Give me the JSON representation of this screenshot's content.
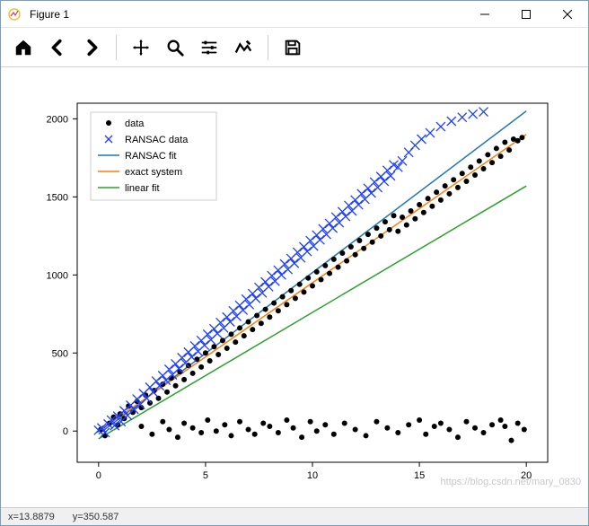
{
  "window": {
    "title": "Figure 1"
  },
  "status": {
    "x_label": "x=",
    "x_value": "13.8879",
    "y_label": "y=",
    "y_value": "350.587"
  },
  "watermark": "https://blog.csdn.net/mary_0830",
  "chart": {
    "type": "scatter-line",
    "xlim": [
      -1,
      21
    ],
    "ylim": [
      -200,
      2100
    ],
    "xtick_step": 5,
    "xticks": [
      0,
      5,
      10,
      15,
      20
    ],
    "ytick_step": 500,
    "yticks": [
      0,
      500,
      1000,
      1500,
      2000
    ],
    "background_color": "#ffffff",
    "axis_color": "#000000",
    "tick_fontsize": 11,
    "legend": {
      "position": "upper-left",
      "fontsize": 11,
      "border_color": "#cccccc",
      "bg_color": "#ffffff",
      "items": [
        {
          "label": "data",
          "type": "marker",
          "marker": "dot",
          "color": "#000000"
        },
        {
          "label": "RANSAC data",
          "type": "marker",
          "marker": "x",
          "color": "#1f3fff"
        },
        {
          "label": "RANSAC fit",
          "type": "line",
          "color": "#1f77b4"
        },
        {
          "label": "exact system",
          "type": "line",
          "color": "#ff7f0e"
        },
        {
          "label": "linear fit",
          "type": "line",
          "color": "#2ca02c"
        }
      ]
    },
    "lines": {
      "ransac_fit": {
        "color": "#1f77b4",
        "width": 1.5,
        "x0": 0,
        "y0": -20,
        "x1": 20,
        "y1": 2050
      },
      "exact_system": {
        "color": "#ff7f0e",
        "width": 1.5,
        "x0": 0,
        "y0": 0,
        "x1": 20,
        "y1": 1900
      },
      "linear_fit": {
        "color": "#2ca02c",
        "width": 1.5,
        "x0": 0,
        "y0": -50,
        "x1": 20,
        "y1": 1570
      }
    },
    "series": {
      "data": {
        "color": "#000000",
        "marker": "dot",
        "size": 3,
        "points": [
          [
            0.1,
            10
          ],
          [
            0.3,
            -30
          ],
          [
            0.5,
            50
          ],
          [
            0.7,
            90
          ],
          [
            0.9,
            40
          ],
          [
            1.0,
            110
          ],
          [
            1.2,
            80
          ],
          [
            1.4,
            160
          ],
          [
            1.6,
            120
          ],
          [
            1.8,
            190
          ],
          [
            2.0,
            150
          ],
          [
            2.2,
            230
          ],
          [
            2.4,
            180
          ],
          [
            2.6,
            260
          ],
          [
            2.8,
            210
          ],
          [
            3.0,
            300
          ],
          [
            3.2,
            250
          ],
          [
            3.4,
            340
          ],
          [
            3.6,
            290
          ],
          [
            3.8,
            380
          ],
          [
            4.0,
            330
          ],
          [
            4.2,
            420
          ],
          [
            4.4,
            370
          ],
          [
            4.6,
            460
          ],
          [
            4.8,
            410
          ],
          [
            5.0,
            500
          ],
          [
            5.2,
            450
          ],
          [
            5.4,
            540
          ],
          [
            5.6,
            490
          ],
          [
            5.8,
            580
          ],
          [
            6.0,
            530
          ],
          [
            6.2,
            620
          ],
          [
            6.4,
            570
          ],
          [
            6.6,
            660
          ],
          [
            6.8,
            610
          ],
          [
            7.0,
            700
          ],
          [
            7.2,
            650
          ],
          [
            7.4,
            740
          ],
          [
            7.6,
            690
          ],
          [
            7.8,
            780
          ],
          [
            8.0,
            730
          ],
          [
            8.2,
            820
          ],
          [
            8.4,
            770
          ],
          [
            8.6,
            860
          ],
          [
            8.8,
            810
          ],
          [
            9.0,
            900
          ],
          [
            9.2,
            850
          ],
          [
            9.4,
            940
          ],
          [
            9.6,
            890
          ],
          [
            9.8,
            980
          ],
          [
            10.0,
            930
          ],
          [
            10.2,
            1020
          ],
          [
            10.4,
            970
          ],
          [
            10.6,
            1060
          ],
          [
            10.8,
            1010
          ],
          [
            11.0,
            1100
          ],
          [
            11.2,
            1050
          ],
          [
            11.4,
            1140
          ],
          [
            11.6,
            1090
          ],
          [
            11.8,
            1180
          ],
          [
            12.0,
            1130
          ],
          [
            12.2,
            1220
          ],
          [
            12.4,
            1170
          ],
          [
            12.6,
            1260
          ],
          [
            12.8,
            1210
          ],
          [
            13.0,
            1300
          ],
          [
            13.2,
            1250
          ],
          [
            13.4,
            1340
          ],
          [
            13.6,
            1290
          ],
          [
            13.8,
            1380
          ],
          [
            14.0,
            1280
          ],
          [
            14.2,
            1370
          ],
          [
            14.4,
            1320
          ],
          [
            14.6,
            1410
          ],
          [
            14.8,
            1360
          ],
          [
            15.0,
            1450
          ],
          [
            15.2,
            1400
          ],
          [
            15.4,
            1490
          ],
          [
            15.6,
            1440
          ],
          [
            15.8,
            1530
          ],
          [
            16.0,
            1480
          ],
          [
            16.2,
            1570
          ],
          [
            16.4,
            1520
          ],
          [
            16.6,
            1610
          ],
          [
            16.8,
            1560
          ],
          [
            17.0,
            1650
          ],
          [
            17.2,
            1600
          ],
          [
            17.4,
            1690
          ],
          [
            17.6,
            1640
          ],
          [
            17.8,
            1730
          ],
          [
            18.0,
            1680
          ],
          [
            18.2,
            1770
          ],
          [
            18.4,
            1720
          ],
          [
            18.6,
            1810
          ],
          [
            18.8,
            1760
          ],
          [
            19.0,
            1850
          ],
          [
            19.2,
            1800
          ],
          [
            19.4,
            1870
          ],
          [
            19.6,
            1860
          ],
          [
            19.8,
            1880
          ],
          [
            2.0,
            30
          ],
          [
            2.5,
            -20
          ],
          [
            3.0,
            60
          ],
          [
            3.3,
            10
          ],
          [
            3.7,
            -40
          ],
          [
            4.0,
            50
          ],
          [
            4.4,
            20
          ],
          [
            4.8,
            -10
          ],
          [
            5.1,
            70
          ],
          [
            5.5,
            0
          ],
          [
            5.9,
            40
          ],
          [
            6.2,
            -30
          ],
          [
            6.6,
            60
          ],
          [
            7.0,
            10
          ],
          [
            7.3,
            -20
          ],
          [
            7.7,
            50
          ],
          [
            8.0,
            30
          ],
          [
            8.4,
            -10
          ],
          [
            8.8,
            70
          ],
          [
            9.1,
            20
          ],
          [
            9.5,
            -40
          ],
          [
            9.9,
            60
          ],
          [
            10.2,
            0
          ],
          [
            10.6,
            40
          ],
          [
            11.0,
            -20
          ],
          [
            11.5,
            50
          ],
          [
            12.0,
            10
          ],
          [
            12.5,
            -30
          ],
          [
            13.0,
            60
          ],
          [
            13.5,
            20
          ],
          [
            14.0,
            -10
          ],
          [
            14.5,
            40
          ],
          [
            15.0,
            70
          ],
          [
            15.3,
            -20
          ],
          [
            15.7,
            30
          ],
          [
            16.0,
            50
          ],
          [
            16.4,
            10
          ],
          [
            16.8,
            -40
          ],
          [
            17.2,
            60
          ],
          [
            17.6,
            20
          ],
          [
            18.0,
            -10
          ],
          [
            18.4,
            40
          ],
          [
            18.8,
            70
          ],
          [
            19.0,
            30
          ],
          [
            19.3,
            -60
          ],
          [
            19.6,
            50
          ],
          [
            19.9,
            10
          ]
        ]
      },
      "ransac_data": {
        "color": "#1f3fff",
        "marker": "x",
        "size": 5,
        "points": [
          [
            0.0,
            5
          ],
          [
            0.15,
            20
          ],
          [
            0.3,
            -10
          ],
          [
            0.45,
            45
          ],
          [
            0.6,
            70
          ],
          [
            0.75,
            35
          ],
          [
            0.9,
            95
          ],
          [
            1.05,
            60
          ],
          [
            1.2,
            130
          ],
          [
            1.35,
            100
          ],
          [
            1.5,
            165
          ],
          [
            1.65,
            140
          ],
          [
            1.8,
            205
          ],
          [
            1.95,
            170
          ],
          [
            2.1,
            240
          ],
          [
            2.25,
            210
          ],
          [
            2.4,
            280
          ],
          [
            2.55,
            250
          ],
          [
            2.7,
            320
          ],
          [
            2.85,
            290
          ],
          [
            3.0,
            355
          ],
          [
            3.15,
            325
          ],
          [
            3.3,
            395
          ],
          [
            3.45,
            360
          ],
          [
            3.6,
            430
          ],
          [
            3.75,
            400
          ],
          [
            3.9,
            470
          ],
          [
            4.05,
            435
          ],
          [
            4.2,
            505
          ],
          [
            4.35,
            475
          ],
          [
            4.5,
            545
          ],
          [
            4.65,
            510
          ],
          [
            4.8,
            580
          ],
          [
            4.95,
            550
          ],
          [
            5.1,
            620
          ],
          [
            5.25,
            585
          ],
          [
            5.4,
            655
          ],
          [
            5.55,
            625
          ],
          [
            5.7,
            695
          ],
          [
            5.85,
            660
          ],
          [
            6.0,
            730
          ],
          [
            6.15,
            700
          ],
          [
            6.3,
            770
          ],
          [
            6.45,
            735
          ],
          [
            6.6,
            805
          ],
          [
            6.75,
            775
          ],
          [
            6.9,
            845
          ],
          [
            7.05,
            810
          ],
          [
            7.2,
            880
          ],
          [
            7.35,
            850
          ],
          [
            7.5,
            920
          ],
          [
            7.65,
            885
          ],
          [
            7.8,
            955
          ],
          [
            7.95,
            925
          ],
          [
            8.1,
            995
          ],
          [
            8.25,
            960
          ],
          [
            8.4,
            1030
          ],
          [
            8.55,
            1000
          ],
          [
            8.7,
            1070
          ],
          [
            8.85,
            1035
          ],
          [
            9.0,
            1105
          ],
          [
            9.15,
            1075
          ],
          [
            9.3,
            1145
          ],
          [
            9.45,
            1110
          ],
          [
            9.6,
            1180
          ],
          [
            9.75,
            1150
          ],
          [
            9.9,
            1220
          ],
          [
            10.05,
            1185
          ],
          [
            10.2,
            1255
          ],
          [
            10.35,
            1225
          ],
          [
            10.5,
            1295
          ],
          [
            10.65,
            1260
          ],
          [
            10.8,
            1330
          ],
          [
            10.95,
            1300
          ],
          [
            11.1,
            1370
          ],
          [
            11.25,
            1335
          ],
          [
            11.4,
            1405
          ],
          [
            11.55,
            1375
          ],
          [
            11.7,
            1445
          ],
          [
            11.85,
            1410
          ],
          [
            12.0,
            1480
          ],
          [
            12.15,
            1450
          ],
          [
            12.3,
            1520
          ],
          [
            12.45,
            1485
          ],
          [
            12.6,
            1555
          ],
          [
            12.75,
            1525
          ],
          [
            12.9,
            1595
          ],
          [
            13.05,
            1560
          ],
          [
            13.2,
            1630
          ],
          [
            13.35,
            1600
          ],
          [
            13.5,
            1670
          ],
          [
            13.65,
            1635
          ],
          [
            13.8,
            1705
          ],
          [
            14.0,
            1690
          ],
          [
            14.2,
            1730
          ],
          [
            14.5,
            1785
          ],
          [
            14.8,
            1830
          ],
          [
            15.1,
            1870
          ],
          [
            15.5,
            1910
          ],
          [
            16.0,
            1950
          ],
          [
            16.5,
            1985
          ],
          [
            17.0,
            2010
          ],
          [
            17.5,
            2030
          ],
          [
            18.0,
            2045
          ]
        ]
      }
    }
  }
}
